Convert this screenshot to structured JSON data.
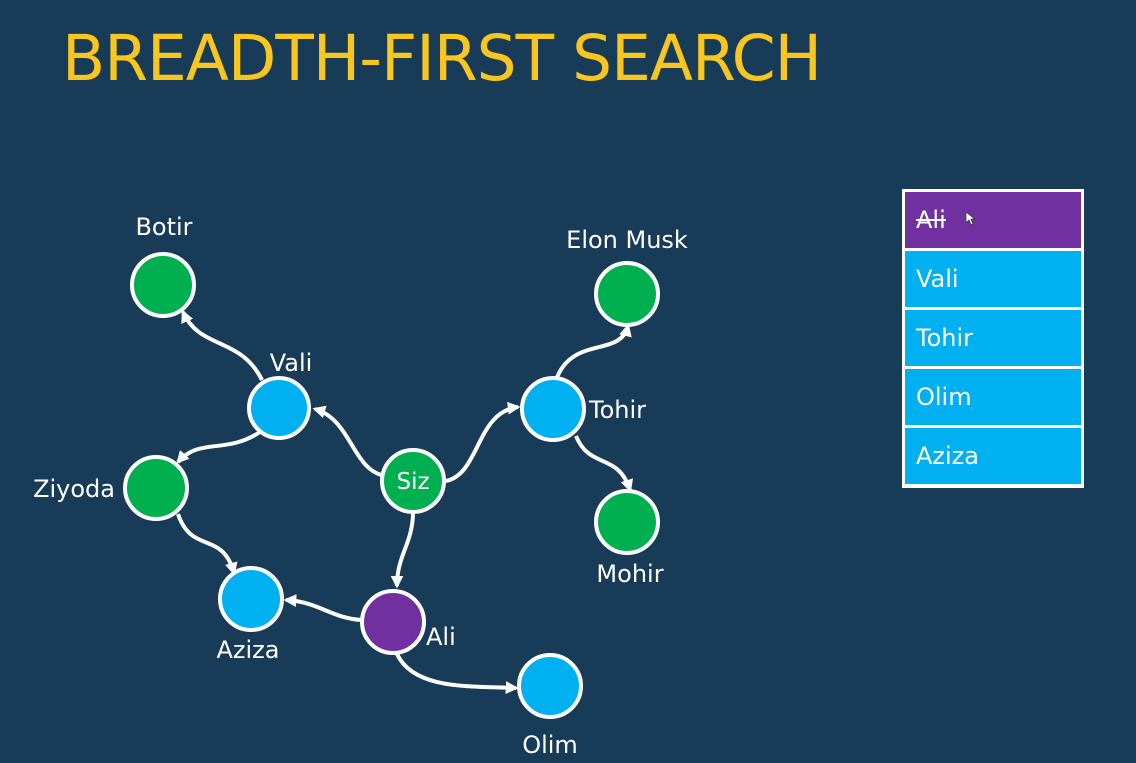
{
  "title": "BREADTH-FIRST SEARCH",
  "colors": {
    "background": "#183b58",
    "title": "#f9c51f",
    "visited": "#00b050",
    "queued": "#00b0f0",
    "current": "#7030a0",
    "edge": "#ffffff"
  },
  "graph": {
    "nodes": [
      {
        "id": "siz",
        "label": "Siz",
        "state": "visited"
      },
      {
        "id": "vali",
        "label": "Vali",
        "state": "queued"
      },
      {
        "id": "botir",
        "label": "Botir",
        "state": "visited"
      },
      {
        "id": "ziyoda",
        "label": "Ziyoda",
        "state": "visited"
      },
      {
        "id": "aziza",
        "label": "Aziza",
        "state": "queued"
      },
      {
        "id": "ali",
        "label": "Ali",
        "state": "current"
      },
      {
        "id": "olim",
        "label": "Olim",
        "state": "queued"
      },
      {
        "id": "tohir",
        "label": "Tohir",
        "state": "queued"
      },
      {
        "id": "elon",
        "label": "Elon Musk",
        "state": "visited"
      },
      {
        "id": "mohir",
        "label": "Mohir",
        "state": "visited"
      }
    ],
    "edges": [
      {
        "from": "siz",
        "to": "vali"
      },
      {
        "from": "siz",
        "to": "tohir"
      },
      {
        "from": "siz",
        "to": "ali"
      },
      {
        "from": "vali",
        "to": "botir"
      },
      {
        "from": "vali",
        "to": "ziyoda"
      },
      {
        "from": "ziyoda",
        "to": "aziza"
      },
      {
        "from": "ali",
        "to": "aziza"
      },
      {
        "from": "ali",
        "to": "olim"
      },
      {
        "from": "tohir",
        "to": "elon"
      },
      {
        "from": "tohir",
        "to": "mohir"
      }
    ]
  },
  "queue": {
    "items": [
      {
        "label": "Ali",
        "state": "current",
        "struck": true
      },
      {
        "label": "Vali",
        "state": "queued",
        "struck": false
      },
      {
        "label": "Tohir",
        "state": "queued",
        "struck": false
      },
      {
        "label": "Olim",
        "state": "queued",
        "struck": false
      },
      {
        "label": "Aziza",
        "state": "queued",
        "struck": false
      }
    ]
  }
}
